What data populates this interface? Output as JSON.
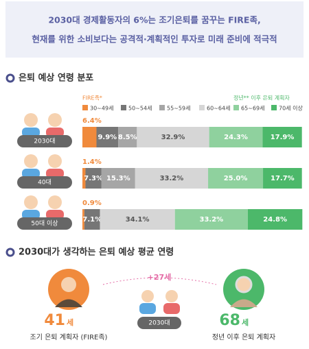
{
  "header": {
    "lines": [
      "2030대 경제활동자의 6%는 조기은퇴를 꿈꾸는 FIRE족,",
      "현재를 위한 소비보다는 공격적·계획적인 투자로 미래 준비에 적극적"
    ]
  },
  "chart_data": {
    "type": "stacked_bar_horizontal",
    "title": "은퇴 예상 연령 분포",
    "legend_groups": [
      "FIRE족*",
      "정년** 이후 은퇴 계획자"
    ],
    "categories": [
      "2030대",
      "40대",
      "50대 이상"
    ],
    "xlim": [
      0,
      100
    ],
    "series": [
      {
        "name": "30~49세",
        "color": "#f08a3c",
        "values": [
          6.4,
          1.4,
          0.9
        ],
        "value_labels": [
          "6.4%",
          "1.4%",
          "0.9%"
        ]
      },
      {
        "name": "50~54세",
        "color": "#767676",
        "values": [
          9.9,
          7.3,
          7.1
        ],
        "value_labels": [
          "9.9%",
          "7.3%",
          "7.1%"
        ]
      },
      {
        "name": "55~59세",
        "color": "#a6a6a6",
        "values": [
          8.5,
          15.3,
          null
        ],
        "value_labels": [
          "8.5%",
          "15.3%",
          null
        ]
      },
      {
        "name": "60~64세",
        "color": "#d6d6d6",
        "values": [
          32.9,
          33.2,
          34.1
        ],
        "value_labels": [
          "32.9%",
          "33.2%",
          "34.1%"
        ]
      },
      {
        "name": "65~69세",
        "color": "#8fd19e",
        "values": [
          24.3,
          25.0,
          33.2
        ],
        "value_labels": [
          "24.3%",
          "25.0%",
          "33.2%"
        ]
      },
      {
        "name": "70세 이상",
        "color": "#4cb86a",
        "values": [
          17.9,
          17.7,
          24.8
        ],
        "value_labels": [
          "17.9%",
          "17.7%",
          "24.8%"
        ]
      }
    ]
  },
  "section2": {
    "title": "2030대가 생각하는 은퇴 예상 평균 연령",
    "difference": "+27세",
    "group": "2030대",
    "left": {
      "age": "41",
      "unit": "세",
      "caption": "조기 은퇴 계획자 (FIRE족)"
    },
    "right": {
      "age": "68",
      "unit": "세",
      "caption": "정년 이후 은퇴 계획자"
    }
  }
}
